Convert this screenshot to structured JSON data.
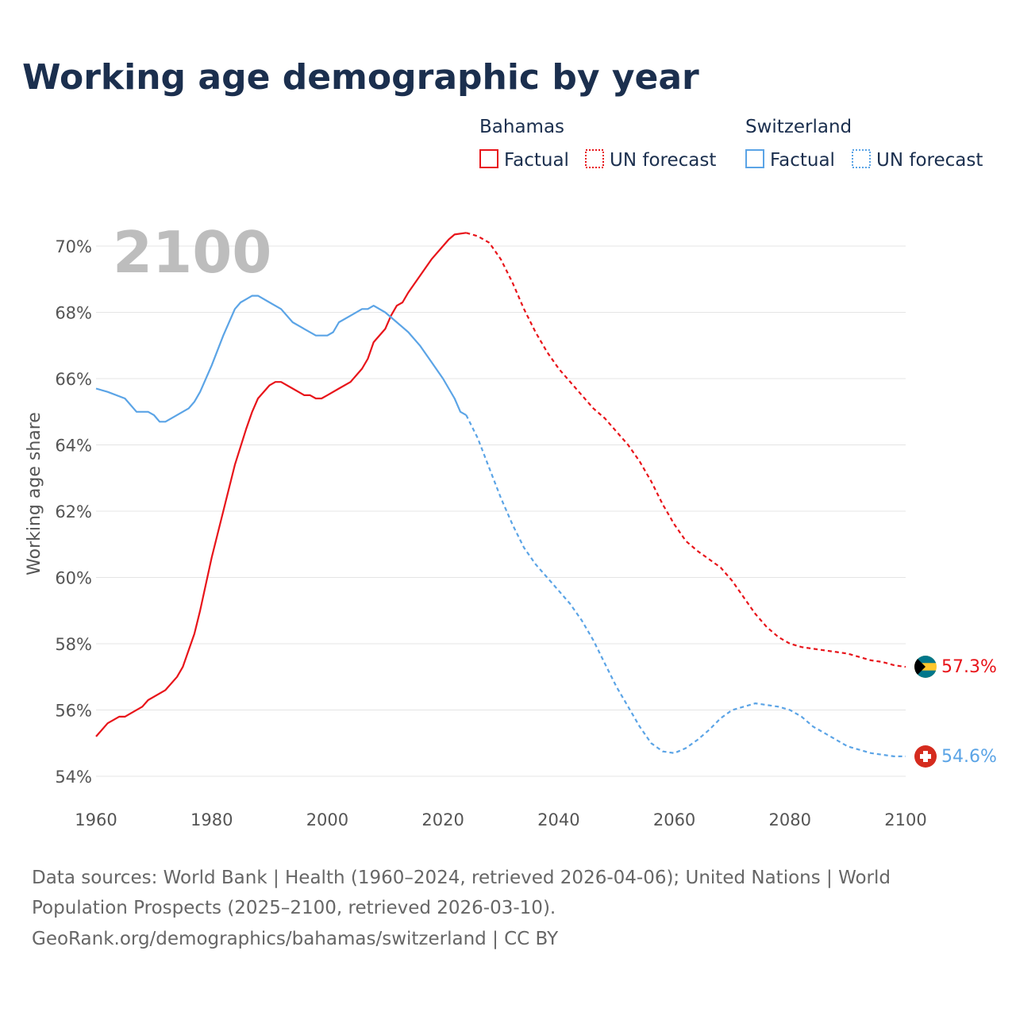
{
  "title": "Working age demographic by year",
  "year_watermark": "2100",
  "legend": {
    "groups": [
      {
        "name": "Bahamas",
        "factual": "Factual",
        "forecast": "UN forecast",
        "color": "#e8141a"
      },
      {
        "name": "Switzerland",
        "factual": "Factual",
        "forecast": "UN forecast",
        "color": "#5ba4e6"
      }
    ]
  },
  "chart_data": {
    "type": "line",
    "title": "Working age demographic by year",
    "xlabel": "",
    "ylabel": "Working age share",
    "xlim": [
      1960,
      2100
    ],
    "ylim": [
      54,
      70.4
    ],
    "x_ticks": [
      1960,
      1980,
      2000,
      2020,
      2040,
      2060,
      2080,
      2100
    ],
    "x_tick_labels": [
      "1960",
      "1980",
      "2000",
      "2020",
      "2040",
      "2060",
      "2080",
      "2100"
    ],
    "y_ticks": [
      54,
      56,
      58,
      60,
      62,
      64,
      66,
      68,
      70
    ],
    "y_tick_labels": [
      "54%",
      "56%",
      "58%",
      "60%",
      "62%",
      "64%",
      "66%",
      "68%",
      "70%"
    ],
    "grid": true,
    "series": [
      {
        "name": "Bahamas",
        "color": "#e8141a",
        "end_label": "57.3%",
        "factual": {
          "x": [
            1960,
            1962,
            1964,
            1965,
            1966,
            1968,
            1969,
            1972,
            1974,
            1975,
            1976,
            1977,
            1978,
            1980,
            1982,
            1984,
            1986,
            1987,
            1988,
            1990,
            1991,
            1992,
            1994,
            1996,
            1997,
            1998,
            1999,
            2000,
            2002,
            2004,
            2006,
            2007,
            2008,
            2010,
            2011,
            2012,
            2013,
            2014,
            2016,
            2018,
            2020,
            2021,
            2022,
            2024
          ],
          "y": [
            55.2,
            55.6,
            55.8,
            55.8,
            55.9,
            56.1,
            56.3,
            56.6,
            57.0,
            57.3,
            57.8,
            58.3,
            59.0,
            60.6,
            62.0,
            63.4,
            64.5,
            65.0,
            65.4,
            65.8,
            65.9,
            65.9,
            65.7,
            65.5,
            65.5,
            65.4,
            65.4,
            65.5,
            65.7,
            65.9,
            66.3,
            66.6,
            67.1,
            67.5,
            67.9,
            68.2,
            68.3,
            68.6,
            69.1,
            69.6,
            70.0,
            70.2,
            70.35,
            70.4
          ]
        },
        "forecast": {
          "x": [
            2024,
            2026,
            2028,
            2030,
            2032,
            2034,
            2036,
            2038,
            2040,
            2042,
            2044,
            2046,
            2048,
            2050,
            2052,
            2054,
            2056,
            2058,
            2060,
            2062,
            2064,
            2066,
            2068,
            2070,
            2072,
            2074,
            2076,
            2078,
            2080,
            2082,
            2084,
            2086,
            2088,
            2090,
            2092,
            2094,
            2096,
            2098,
            2100
          ],
          "y": [
            70.4,
            70.3,
            70.1,
            69.6,
            68.9,
            68.1,
            67.4,
            66.8,
            66.3,
            65.9,
            65.5,
            65.1,
            64.8,
            64.4,
            64.0,
            63.5,
            62.9,
            62.2,
            61.6,
            61.1,
            60.8,
            60.55,
            60.3,
            59.9,
            59.4,
            58.9,
            58.5,
            58.2,
            58.0,
            57.9,
            57.85,
            57.8,
            57.75,
            57.7,
            57.6,
            57.5,
            57.45,
            57.35,
            57.3
          ]
        }
      },
      {
        "name": "Switzerland",
        "color": "#5ba4e6",
        "end_label": "54.6%",
        "factual": {
          "x": [
            1960,
            1962,
            1965,
            1967,
            1969,
            1970,
            1971,
            1972,
            1974,
            1976,
            1977,
            1978,
            1980,
            1982,
            1984,
            1985,
            1986,
            1987,
            1988,
            1990,
            1992,
            1994,
            1996,
            1998,
            2000,
            2001,
            2002,
            2004,
            2006,
            2007,
            2008,
            2010,
            2012,
            2014,
            2016,
            2018,
            2020,
            2022,
            2023,
            2024
          ],
          "y": [
            65.7,
            65.6,
            65.4,
            65.0,
            65.0,
            64.9,
            64.7,
            64.7,
            64.9,
            65.1,
            65.3,
            65.6,
            66.4,
            67.3,
            68.1,
            68.3,
            68.4,
            68.5,
            68.5,
            68.3,
            68.1,
            67.7,
            67.5,
            67.3,
            67.3,
            67.4,
            67.7,
            67.9,
            68.1,
            68.1,
            68.2,
            68.0,
            67.7,
            67.4,
            67.0,
            66.5,
            66.0,
            65.4,
            65.0,
            64.9
          ]
        },
        "forecast": {
          "x": [
            2024,
            2026,
            2028,
            2030,
            2032,
            2034,
            2036,
            2038,
            2040,
            2042,
            2044,
            2046,
            2048,
            2050,
            2052,
            2054,
            2056,
            2058,
            2060,
            2062,
            2064,
            2066,
            2068,
            2070,
            2072,
            2074,
            2076,
            2078,
            2080,
            2082,
            2084,
            2086,
            2088,
            2090,
            2092,
            2094,
            2096,
            2098,
            2100
          ],
          "y": [
            64.9,
            64.2,
            63.3,
            62.4,
            61.6,
            60.9,
            60.4,
            60.0,
            59.6,
            59.2,
            58.7,
            58.1,
            57.4,
            56.7,
            56.1,
            55.5,
            55.0,
            54.75,
            54.7,
            54.85,
            55.1,
            55.4,
            55.75,
            56.0,
            56.1,
            56.2,
            56.15,
            56.1,
            56.0,
            55.8,
            55.5,
            55.3,
            55.1,
            54.9,
            54.8,
            54.7,
            54.65,
            54.6,
            54.6
          ]
        }
      }
    ]
  },
  "source": {
    "line1": "Data sources: World Bank | Health (1960–2024, retrieved 2026-04-06); United Nations | World",
    "line2": "Population Prospects (2025–2100, retrieved 2026-03-10).",
    "line3": "GeoRank.org/demographics/bahamas/switzerland | CC BY"
  }
}
